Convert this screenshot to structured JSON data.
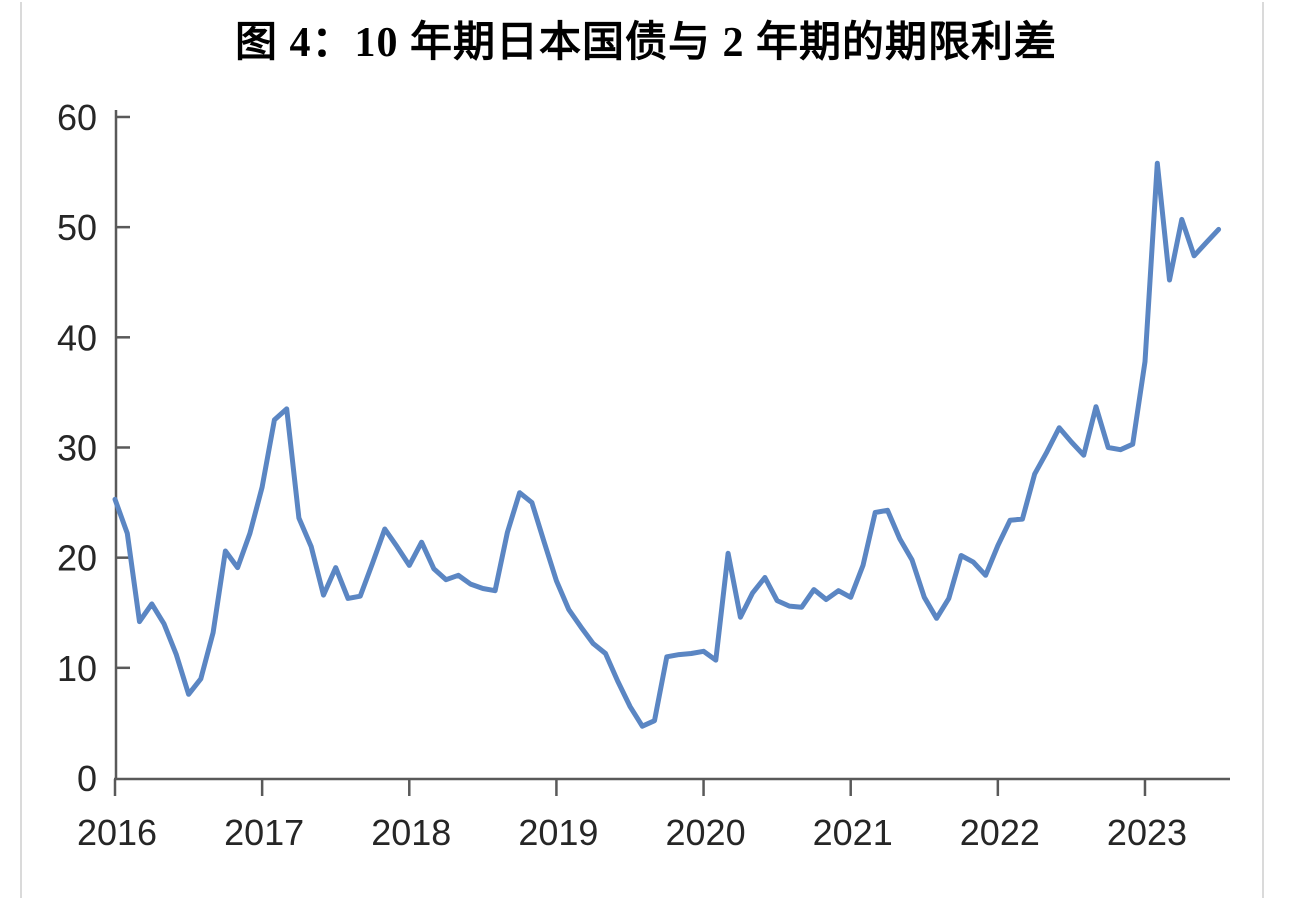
{
  "title": "图 4：10 年期日本国债与 2 年期的期限利差",
  "colors": {
    "line": "#5b86c3",
    "axis": "#595959",
    "tick_label": "#262626",
    "title_text": "#000000",
    "cell_border": "#dadada",
    "background": "#ffffff"
  },
  "chart_data": {
    "type": "line",
    "title": "图 4：10 年期日本国债与 2 年期的期限利差",
    "xlabel": "",
    "ylabel": "",
    "x_unit": "month",
    "x_range": [
      "2016-01",
      "2023-07"
    ],
    "x_tick_labels": [
      "2016",
      "2017",
      "2018",
      "2019",
      "2020",
      "2021",
      "2022",
      "2023"
    ],
    "y_ticks": [
      0,
      10,
      20,
      30,
      40,
      50,
      60
    ],
    "ylim": [
      0,
      60
    ],
    "grid": false,
    "legend": false,
    "series": [
      {
        "color": "#5b86c3",
        "values": [
          25.3,
          22.2,
          14.2,
          15.8,
          14.0,
          11.2,
          7.6,
          9.0,
          13.2,
          20.6,
          19.1,
          22.2,
          26.4,
          32.5,
          33.5,
          23.6,
          21.0,
          16.6,
          19.1,
          16.3,
          16.5,
          19.5,
          22.6,
          21.0,
          19.3,
          21.4,
          19.0,
          18.0,
          18.4,
          17.6,
          17.2,
          17.0,
          22.3,
          25.9,
          25.0,
          21.4,
          17.9,
          15.3,
          13.7,
          12.2,
          11.3,
          8.8,
          6.5,
          4.7,
          5.2,
          11.0,
          11.2,
          11.3,
          11.5,
          10.7,
          20.4,
          14.6,
          16.8,
          18.2,
          16.1,
          15.6,
          15.5,
          17.1,
          16.2,
          17.0,
          16.4,
          19.3,
          24.1,
          24.3,
          21.7,
          19.8,
          16.4,
          14.5,
          16.3,
          20.2,
          19.6,
          18.4,
          21.1,
          23.4,
          23.5,
          27.6,
          29.6,
          31.8,
          30.5,
          29.3,
          33.7,
          30.0,
          29.8,
          30.3,
          37.8,
          55.8,
          45.2,
          50.7,
          47.4,
          48.6,
          49.8
        ]
      }
    ]
  }
}
